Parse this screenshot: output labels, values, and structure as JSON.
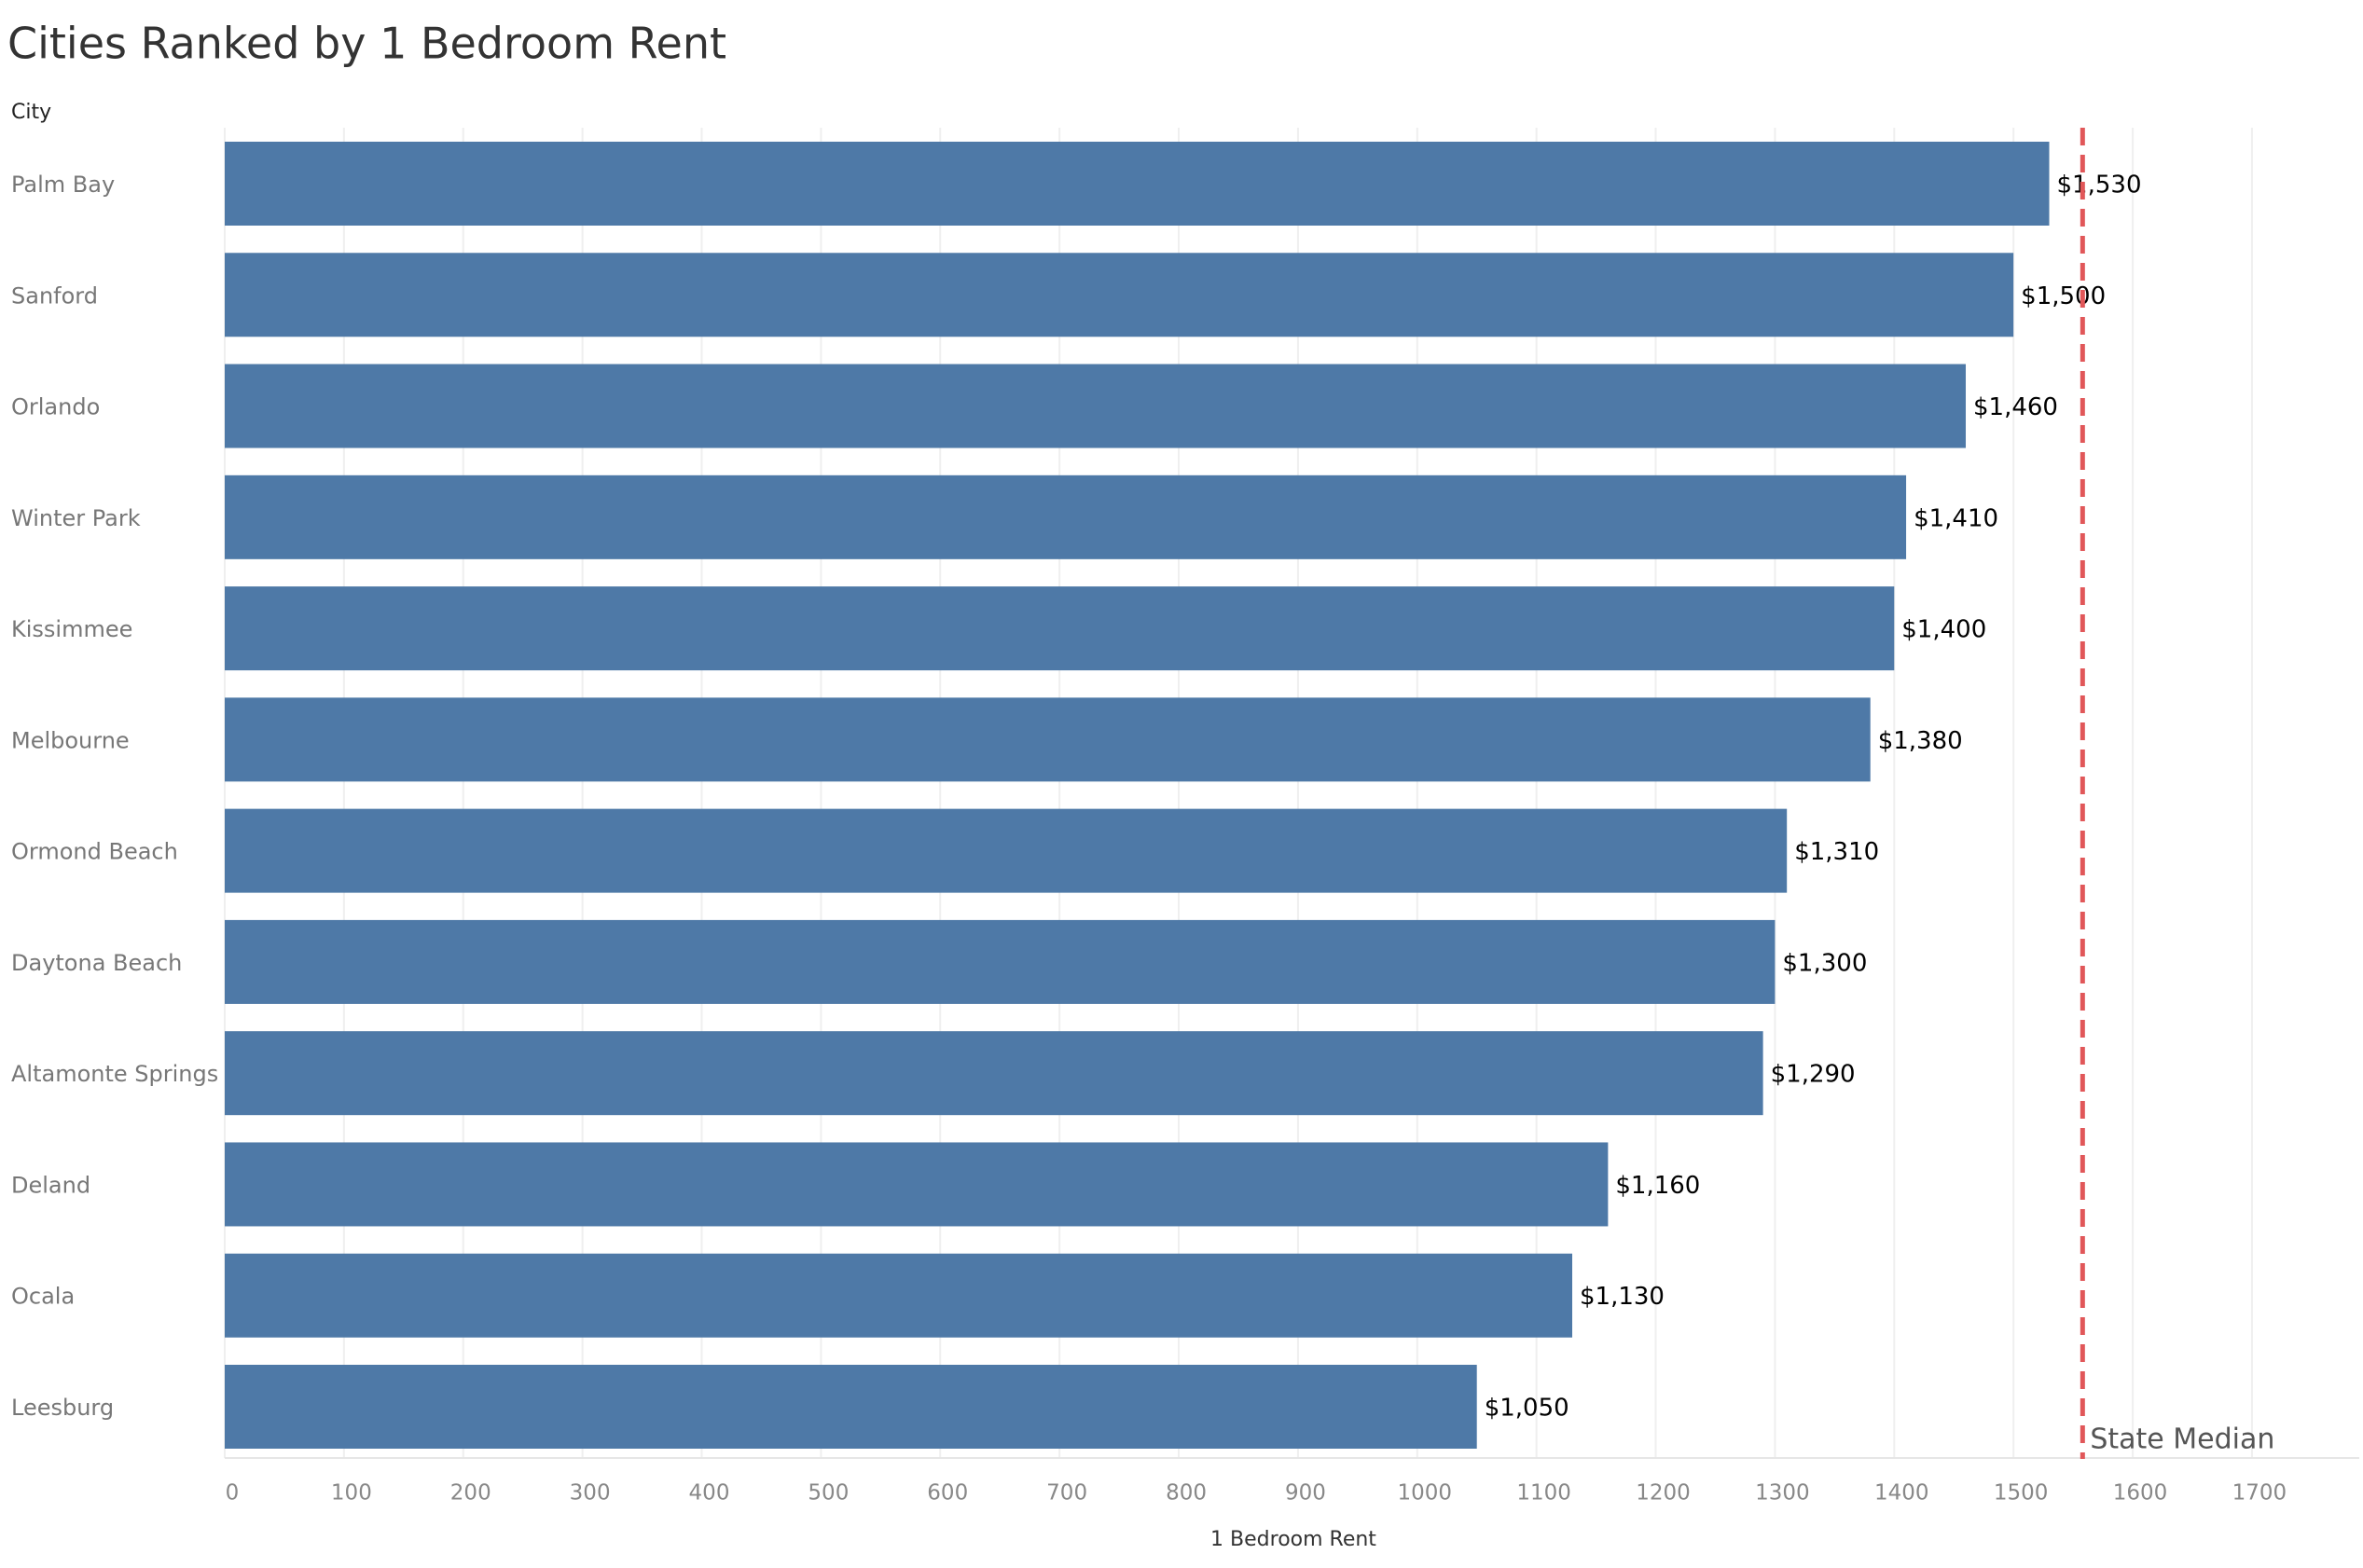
{
  "chart_data": {
    "type": "bar",
    "orientation": "horizontal",
    "title": "Cities Ranked by 1 Bedroom Rent",
    "y_axis_label": "City",
    "x_axis_label": "1 Bedroom Rent",
    "categories": [
      "Palm Bay",
      "Sanford",
      "Orlando",
      "Winter Park",
      "Kissimmee",
      "Melbourne",
      "Ormond Beach",
      "Daytona Beach",
      "Altamonte Springs",
      "Deland",
      "Ocala",
      "Leesburg"
    ],
    "values": [
      1530,
      1500,
      1460,
      1410,
      1400,
      1380,
      1310,
      1300,
      1290,
      1160,
      1130,
      1050
    ],
    "value_labels": [
      "$1,530",
      "$1,500",
      "$1,460",
      "$1,410",
      "$1,400",
      "$1,380",
      "$1,310",
      "$1,300",
      "$1,290",
      "$1,160",
      "$1,130",
      "$1,050"
    ],
    "color": "#4e79a7",
    "xlim": [
      0,
      1790
    ],
    "xticks": [
      0,
      100,
      200,
      300,
      400,
      500,
      600,
      700,
      800,
      900,
      1000,
      1100,
      1200,
      1300,
      1400,
      1500,
      1600,
      1700
    ],
    "grid": true,
    "reference_line": {
      "value": 1558,
      "label": "State Median",
      "color": "#e15759"
    }
  }
}
